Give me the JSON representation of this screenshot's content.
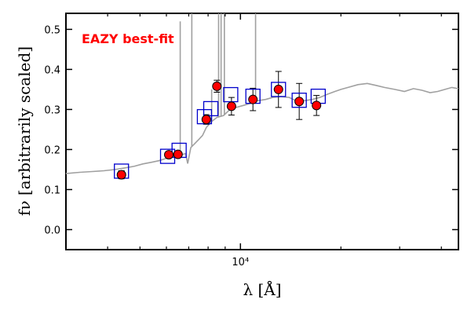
{
  "chart_data": {
    "type": "scatter",
    "title": "",
    "xlabel": "λ [Å]",
    "ylabel": "fν [arbitrarily scaled]",
    "xscale": "log",
    "xlim": [
      3000,
      45000
    ],
    "ylim": [
      -0.05,
      0.54
    ],
    "yticks": [
      0.0,
      0.1,
      0.2,
      0.3,
      0.4,
      0.5
    ],
    "ytick_labels": [
      "0.0",
      "0.1",
      "0.2",
      "0.3",
      "0.4",
      "0.5"
    ],
    "xticks": [
      10000
    ],
    "xtick_labels": [
      "10⁴"
    ],
    "grid": false,
    "annotation": {
      "text": "EAZY best-fit",
      "color": "#ff0000",
      "placement": "top-left"
    },
    "colors": {
      "model": "#a0a0a0",
      "observed_fill": "#ff0000",
      "template_box": "#0000cc"
    },
    "observed": {
      "name": "",
      "x": [
        4400,
        6100,
        6500,
        7900,
        8500,
        9400,
        10900,
        13000,
        15000,
        16900
      ],
      "y": [
        0.137,
        0.187,
        0.188,
        0.275,
        0.358,
        0.308,
        0.325,
        0.35,
        0.32,
        0.31
      ],
      "yerr": [
        0.01,
        0.008,
        0.008,
        0.012,
        0.015,
        0.022,
        0.028,
        0.045,
        0.045,
        0.025
      ]
    },
    "template_photometry": {
      "name": "",
      "x": [
        4400,
        6050,
        6550,
        7800,
        8150,
        9350,
        10900,
        13000,
        15000,
        17100
      ],
      "y": [
        0.146,
        0.183,
        0.198,
        0.282,
        0.302,
        0.337,
        0.333,
        0.35,
        0.323,
        0.333
      ]
    },
    "model": {
      "name": "",
      "x": [
        3000,
        3300,
        3600,
        3900,
        4200,
        4500,
        4800,
        5100,
        5400,
        5700,
        6000,
        6300,
        6600,
        6850,
        6950,
        7100,
        7300,
        7500,
        7700,
        7900,
        8200,
        8500,
        8900,
        9300,
        9700,
        10200,
        10700,
        11300,
        11900,
        12500,
        13200,
        14000,
        14800,
        15600,
        16400,
        17300,
        18200,
        19200,
        20000,
        21000,
        22500,
        24000,
        25500,
        27000,
        29000,
        31000,
        33000,
        35000,
        37000,
        39000,
        41000,
        43000,
        45000
      ],
      "y": [
        0.14,
        0.143,
        0.145,
        0.147,
        0.15,
        0.154,
        0.158,
        0.164,
        0.168,
        0.172,
        0.178,
        0.182,
        0.186,
        0.19,
        0.165,
        0.205,
        0.215,
        0.225,
        0.235,
        0.255,
        0.27,
        0.28,
        0.285,
        0.3,
        0.305,
        0.31,
        0.315,
        0.322,
        0.325,
        0.33,
        0.332,
        0.33,
        0.32,
        0.322,
        0.325,
        0.33,
        0.338,
        0.345,
        0.35,
        0.355,
        0.362,
        0.365,
        0.36,
        0.355,
        0.35,
        0.345,
        0.352,
        0.348,
        0.342,
        0.345,
        0.35,
        0.355,
        0.352
      ]
    },
    "emission_lines": [
      {
        "x": 7150,
        "y": 0.54
      },
      {
        "x": 8600,
        "y": 0.54
      },
      {
        "x": 8750,
        "y": 0.54
      },
      {
        "x": 8950,
        "y": 0.54
      },
      {
        "x": 11100,
        "y": 0.54
      },
      {
        "x": 8200,
        "y": 0.35
      },
      {
        "x": 6600,
        "y": 0.52
      }
    ]
  }
}
